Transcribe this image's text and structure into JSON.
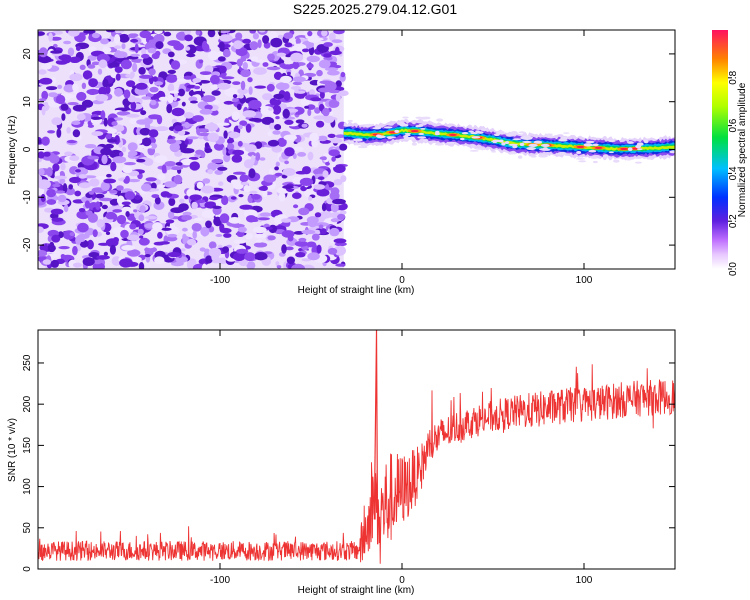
{
  "title": "S225.2025.279.04.12.G01",
  "chart_data": [
    {
      "type": "heatmap",
      "name": "spectrogram",
      "xlabel": "Height of straight line (km)",
      "ylabel": "Frequency (Hz)",
      "xlim": [
        -200,
        150
      ],
      "ylim": [
        -25,
        25
      ],
      "xticks": [
        -100,
        0,
        100
      ],
      "xtick_labels": [
        "-100",
        "0",
        "100"
      ],
      "yticks": [
        -20,
        -10,
        0,
        10,
        20
      ],
      "ytick_labels": [
        "-20",
        "-10",
        "0",
        "10",
        "20"
      ],
      "noise_region_x": [
        -200,
        -32
      ],
      "signal_track": {
        "x": [
          -32,
          -20,
          -10,
          0,
          10,
          20,
          30,
          40,
          50,
          60,
          70,
          80,
          90,
          100,
          110,
          120,
          130,
          140,
          150
        ],
        "freq": [
          3.5,
          3.0,
          3.2,
          4.0,
          3.8,
          3.3,
          3.0,
          2.6,
          2.0,
          1.3,
          1.0,
          0.9,
          0.7,
          0.5,
          0.3,
          0.1,
          0.2,
          0.3,
          0.6
        ]
      },
      "colorbar": {
        "label": "Normalized spectral amplitude",
        "range": [
          0,
          1
        ],
        "ticks": [
          0.0,
          0.2,
          0.4,
          0.6,
          0.8
        ],
        "tick_labels": [
          "0.0",
          "0.2",
          "0.4",
          "0.6",
          "0.8"
        ]
      }
    },
    {
      "type": "line",
      "name": "snr",
      "xlabel": "Height of straight line (km)",
      "ylabel": "SNR (10 * v/v)",
      "xlim": [
        -200,
        150
      ],
      "ylim": [
        0,
        290
      ],
      "xticks": [
        -100,
        0,
        100
      ],
      "xtick_labels": [
        "-100",
        "0",
        "100"
      ],
      "yticks": [
        0,
        50,
        100,
        150,
        200,
        250
      ],
      "ytick_labels": [
        "0",
        "50",
        "100",
        "150",
        "200",
        "250"
      ],
      "color": "#ee3333",
      "envelope": {
        "x": [
          -200,
          -150,
          -100,
          -50,
          -25,
          -22,
          -18,
          -15,
          -12,
          -10,
          -8,
          -5,
          0,
          5,
          10,
          15,
          20,
          30,
          40,
          50,
          60,
          70,
          80,
          90,
          100,
          110,
          120,
          130,
          140,
          150
        ],
        "mean": [
          22,
          22,
          22,
          22,
          22,
          30,
          60,
          90,
          60,
          75,
          80,
          90,
          95,
          105,
          120,
          150,
          160,
          172,
          180,
          185,
          190,
          192,
          195,
          198,
          200,
          202,
          205,
          207,
          208,
          210
        ],
        "spread": [
          12,
          12,
          12,
          12,
          12,
          30,
          40,
          45,
          50,
          60,
          60,
          55,
          45,
          40,
          30,
          25,
          22,
          20,
          20,
          20,
          20,
          22,
          22,
          22,
          22,
          22,
          22,
          22,
          22,
          22
        ]
      },
      "spike": {
        "x": -14,
        "value": 290
      }
    }
  ]
}
